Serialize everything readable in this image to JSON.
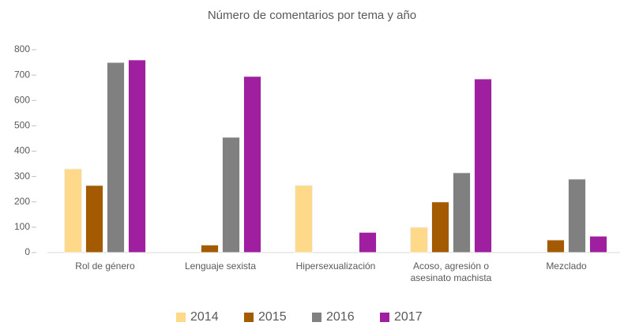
{
  "chart_data": {
    "type": "bar",
    "title": "Número de comentarios por tema y año",
    "categories": [
      "Rol de género",
      "Lenguaje sexista",
      "Hipersexualización",
      "Acoso, agresión o asesinato machista",
      "Mezclado"
    ],
    "series": [
      {
        "name": "2014",
        "color": "#ffd98a",
        "values": [
          330,
          0,
          265,
          100,
          0
        ]
      },
      {
        "name": "2015",
        "color": "#a35a00",
        "values": [
          265,
          30,
          0,
          200,
          50
        ]
      },
      {
        "name": "2016",
        "color": "#808080",
        "values": [
          750,
          455,
          0,
          315,
          290
        ]
      },
      {
        "name": "2017",
        "color": "#a01ea0",
        "values": [
          760,
          695,
          80,
          685,
          65
        ]
      }
    ],
    "ylim": [
      0,
      800
    ],
    "yticks": [
      0,
      100,
      200,
      300,
      400,
      500,
      600,
      700,
      800
    ],
    "grid": false,
    "legend": "bottom"
  }
}
